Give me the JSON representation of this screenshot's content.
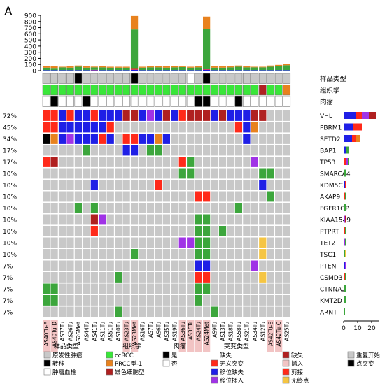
{
  "panel_label": "A",
  "colors": {
    "grey": "#c8c8c8",
    "white": "#ffffff",
    "black": "#000000",
    "green": "#3ca63c",
    "bright_green": "#39e639",
    "orange": "#e8821e",
    "yellow": "#f5c542",
    "blue": "#1f1fe6",
    "red": "#ff2a1a",
    "purple": "#a033e6",
    "maroon": "#b02020",
    "pink_bg": "#f2c4c4"
  },
  "chart_data": {
    "type": "table",
    "samples": [
      "AS40Tu-E",
      "AS40Tu-D",
      "AS37Tu",
      "AS26Tu",
      "AS26Met",
      "AS44Tu",
      "AS41Tu",
      "AS11Tu",
      "AS51Tu",
      "AS10Tu",
      "AS23Tu",
      "AS23Met",
      "AS16Tu",
      "AS7Tu",
      "AS6Tu",
      "AS35Tu",
      "AS19Tu",
      "AS36Tu",
      "AS36Tr",
      "AS24Tu",
      "AS24Met",
      "AS9Tu",
      "AS13Tu",
      "AS18Tu",
      "AS58Tu",
      "AS21Tu",
      "AS34Tu",
      "AS12Tu",
      "AS42Tu-E",
      "AS42Tu-C",
      "AS25Tu"
    ],
    "sample_pink": [
      true,
      true,
      false,
      false,
      false,
      false,
      false,
      false,
      false,
      false,
      true,
      true,
      false,
      false,
      false,
      false,
      false,
      true,
      true,
      true,
      true,
      false,
      false,
      false,
      false,
      false,
      false,
      false,
      true,
      true,
      false
    ],
    "top_axis": {
      "ticks": [
        0,
        100,
        200,
        300,
        400,
        500,
        600,
        700,
        800,
        900
      ],
      "max": 900
    },
    "top_bar_legend": "重复开始 / 点突变",
    "top_bars": [
      {
        "green": 40,
        "orange": 25,
        "blue": 8,
        "red": 0
      },
      {
        "green": 35,
        "orange": 25,
        "blue": 8,
        "red": 0
      },
      {
        "green": 45,
        "orange": 10,
        "blue": 8,
        "red": 0
      },
      {
        "green": 40,
        "orange": 20,
        "blue": 8,
        "red": 0
      },
      {
        "green": 55,
        "orange": 20,
        "blue": 8,
        "red": 0
      },
      {
        "green": 40,
        "orange": 20,
        "blue": 8,
        "red": 0
      },
      {
        "green": 40,
        "orange": 12,
        "blue": 8,
        "red": 5
      },
      {
        "green": 45,
        "orange": 18,
        "blue": 8,
        "red": 0
      },
      {
        "green": 40,
        "orange": 15,
        "blue": 8,
        "red": 0
      },
      {
        "green": 40,
        "orange": 15,
        "blue": 8,
        "red": 0
      },
      {
        "green": 40,
        "orange": 15,
        "blue": 8,
        "red": 0
      },
      {
        "green": 630,
        "orange": 220,
        "blue": 15,
        "red": 25
      },
      {
        "green": 40,
        "orange": 15,
        "blue": 8,
        "red": 0
      },
      {
        "green": 45,
        "orange": 15,
        "blue": 8,
        "red": 0
      },
      {
        "green": 45,
        "orange": 25,
        "blue": 8,
        "red": 0
      },
      {
        "green": 40,
        "orange": 20,
        "blue": 8,
        "red": 0
      },
      {
        "green": 45,
        "orange": 20,
        "blue": 8,
        "red": 0
      },
      {
        "green": 50,
        "orange": 15,
        "blue": 8,
        "red": 0
      },
      {
        "green": 40,
        "orange": 15,
        "blue": 8,
        "red": 0
      },
      {
        "green": 45,
        "orange": 15,
        "blue": 8,
        "red": 0
      },
      {
        "green": 650,
        "orange": 200,
        "blue": 15,
        "red": 15
      },
      {
        "green": 40,
        "orange": 20,
        "blue": 8,
        "red": 0
      },
      {
        "green": 40,
        "orange": 20,
        "blue": 8,
        "red": 0
      },
      {
        "green": 45,
        "orange": 15,
        "blue": 8,
        "red": 0
      },
      {
        "green": 55,
        "orange": 20,
        "blue": 8,
        "red": 0
      },
      {
        "green": 45,
        "orange": 15,
        "blue": 8,
        "red": 0
      },
      {
        "green": 45,
        "orange": 10,
        "blue": 8,
        "red": 0
      },
      {
        "green": 45,
        "orange": 10,
        "blue": 8,
        "red": 0
      },
      {
        "green": 55,
        "orange": 20,
        "blue": 8,
        "red": 0
      },
      {
        "green": 70,
        "orange": 15,
        "blue": 8,
        "red": 0
      },
      {
        "green": 80,
        "orange": 15,
        "blue": 8,
        "red": 0
      }
    ],
    "annotation_rows": [
      {
        "label": "样品类型",
        "values": [
          "G",
          "G",
          "G",
          "G",
          "K",
          "G",
          "G",
          "G",
          "G",
          "G",
          "G",
          "K",
          "G",
          "G",
          "G",
          "G",
          "G",
          "G",
          "W",
          "G",
          "K",
          "G",
          "G",
          "G",
          "G",
          "G",
          "G",
          "G",
          "G",
          "G",
          "G"
        ]
      },
      {
        "label": "组织学",
        "values": [
          "B",
          "B",
          "B",
          "B",
          "B",
          "B",
          "B",
          "B",
          "B",
          "B",
          "B",
          "B",
          "B",
          "B",
          "B",
          "B",
          "B",
          "B",
          "B",
          "B",
          "B",
          "B",
          "B",
          "B",
          "B",
          "B",
          "B",
          "M",
          "B",
          "B",
          "O"
        ]
      },
      {
        "label": "肉瘤",
        "values": [
          "W",
          "K",
          "W",
          "W",
          "W",
          "K",
          "W",
          "W",
          "W",
          "W",
          "W",
          "W",
          "W",
          "W",
          "W",
          "W",
          "W",
          "W",
          "W",
          "K",
          "K",
          "W",
          "W",
          "W",
          "K",
          "W",
          "W",
          "W",
          "W",
          "W",
          "W"
        ]
      }
    ],
    "genes": [
      {
        "name": "VHL",
        "pct": "72%",
        "cells": [
          "R",
          "R",
          "B",
          "R",
          "B",
          "B",
          "R",
          "B",
          "B",
          "B",
          "M",
          "M",
          "B",
          "P",
          "B",
          "M",
          "B",
          "R",
          "M",
          "M",
          "M",
          "B",
          "M",
          "B",
          "B",
          "B",
          "M",
          "M",
          "G",
          "G",
          "G"
        ],
        "bar": {
          "blue": 9,
          "red": 4,
          "purple": 5,
          "maroon": 5
        }
      },
      {
        "name": "PBRM1",
        "pct": "45%",
        "cells": [
          "R",
          "R",
          "B",
          "B",
          "B",
          "B",
          "B",
          "B",
          "R",
          "G",
          "G",
          "G",
          "G",
          "G",
          "G",
          "G",
          "G",
          "G",
          "G",
          "G",
          "G",
          "G",
          "G",
          "G",
          "R",
          "B",
          "O",
          "G",
          "G",
          "G",
          "G"
        ],
        "bar": {
          "blue": 7,
          "red": 6
        }
      },
      {
        "name": "SETD2",
        "pct": "34%",
        "cells": [
          "K",
          "O",
          "B",
          "P",
          "B",
          "B",
          "B",
          "R",
          "B",
          "G",
          "R",
          "R",
          "B",
          "B",
          "O",
          "B",
          "G",
          "G",
          "G",
          "G",
          "G",
          "G",
          "G",
          "G",
          "G",
          "B",
          "G",
          "G",
          "G",
          "G",
          "G"
        ],
        "bar": {
          "blue": 6,
          "orange": 3,
          "red": 3
        }
      },
      {
        "name": "BAP1",
        "pct": "17%",
        "cells": [
          "G",
          "G",
          "G",
          "G",
          "G",
          "V",
          "G",
          "G",
          "G",
          "G",
          "B",
          "B",
          "G",
          "V",
          "V",
          "G",
          "G",
          "G",
          "G",
          "G",
          "G",
          "G",
          "G",
          "G",
          "G",
          "G",
          "G",
          "G",
          "G",
          "G",
          "G"
        ],
        "bar": {
          "blue": 2,
          "green": 2
        }
      },
      {
        "name": "TP53",
        "pct": "17%",
        "cells": [
          "R",
          "M",
          "G",
          "G",
          "G",
          "G",
          "G",
          "G",
          "G",
          "G",
          "G",
          "G",
          "G",
          "G",
          "G",
          "G",
          "G",
          "R",
          "V",
          "G",
          "G",
          "G",
          "G",
          "G",
          "G",
          "G",
          "P",
          "G",
          "G",
          "G",
          "G"
        ],
        "bar": {
          "red": 2,
          "purple": 1,
          "green": 1
        }
      },
      {
        "name": "SMARCA4",
        "pct": "10%",
        "cells": [
          "G",
          "G",
          "G",
          "G",
          "G",
          "G",
          "G",
          "G",
          "G",
          "G",
          "G",
          "G",
          "G",
          "G",
          "G",
          "G",
          "G",
          "V",
          "V",
          "G",
          "G",
          "G",
          "G",
          "G",
          "G",
          "G",
          "G",
          "V",
          "V",
          "G",
          "G"
        ],
        "bar": {
          "green": 2
        }
      },
      {
        "name": "KDM5C",
        "pct": "10%",
        "cells": [
          "G",
          "G",
          "G",
          "G",
          "G",
          "G",
          "B",
          "G",
          "G",
          "G",
          "G",
          "G",
          "G",
          "G",
          "R",
          "G",
          "G",
          "G",
          "G",
          "G",
          "G",
          "G",
          "G",
          "G",
          "G",
          "G",
          "G",
          "B",
          "G",
          "G",
          "G"
        ],
        "bar": {
          "blue": 1,
          "red": 1
        }
      },
      {
        "name": "AKAP9",
        "pct": "10%",
        "cells": [
          "G",
          "G",
          "G",
          "G",
          "G",
          "G",
          "G",
          "G",
          "G",
          "G",
          "G",
          "G",
          "G",
          "G",
          "G",
          "G",
          "G",
          "G",
          "G",
          "R",
          "R",
          "G",
          "G",
          "G",
          "G",
          "G",
          "G",
          "G",
          "V",
          "G",
          "G"
        ],
        "bar": {
          "red": 1,
          "green": 1
        }
      },
      {
        "name": "FGFR1OP",
        "pct": "10%",
        "cells": [
          "G",
          "G",
          "G",
          "G",
          "V",
          "G",
          "V",
          "G",
          "G",
          "G",
          "G",
          "G",
          "G",
          "G",
          "G",
          "G",
          "G",
          "G",
          "G",
          "G",
          "G",
          "G",
          "G",
          "G",
          "V",
          "G",
          "G",
          "G",
          "G",
          "G",
          "G"
        ],
        "bar": {
          "green": 2
        }
      },
      {
        "name": "KIAA1549",
        "pct": "10%",
        "cells": [
          "G",
          "G",
          "G",
          "G",
          "G",
          "G",
          "M",
          "P",
          "G",
          "G",
          "G",
          "G",
          "G",
          "G",
          "G",
          "G",
          "G",
          "G",
          "G",
          "V",
          "V",
          "G",
          "G",
          "G",
          "G",
          "G",
          "G",
          "G",
          "G",
          "G",
          "G"
        ],
        "bar": {
          "maroon": 1,
          "purple": 1
        }
      },
      {
        "name": "PTPRT",
        "pct": "10%",
        "cells": [
          "G",
          "G",
          "G",
          "G",
          "G",
          "G",
          "R",
          "G",
          "G",
          "G",
          "G",
          "G",
          "G",
          "G",
          "G",
          "G",
          "G",
          "G",
          "G",
          "V",
          "V",
          "G",
          "V",
          "G",
          "G",
          "G",
          "G",
          "G",
          "G",
          "G",
          "G"
        ],
        "bar": {
          "red": 1,
          "green": 1
        }
      },
      {
        "name": "TET2",
        "pct": "10%",
        "cells": [
          "G",
          "G",
          "G",
          "G",
          "G",
          "G",
          "G",
          "G",
          "G",
          "G",
          "G",
          "G",
          "G",
          "G",
          "G",
          "G",
          "G",
          "P",
          "P",
          "V",
          "V",
          "G",
          "G",
          "G",
          "G",
          "G",
          "G",
          "Y",
          "G",
          "G",
          "G"
        ],
        "bar": {
          "purple": 1,
          "green": 1
        }
      },
      {
        "name": "TSC1",
        "pct": "10%",
        "cells": [
          "G",
          "G",
          "G",
          "G",
          "G",
          "G",
          "G",
          "G",
          "G",
          "G",
          "G",
          "V",
          "G",
          "G",
          "G",
          "G",
          "G",
          "G",
          "G",
          "V",
          "V",
          "G",
          "G",
          "G",
          "G",
          "G",
          "G",
          "Y",
          "G",
          "G",
          "G"
        ],
        "bar": {
          "green": 1,
          "yellow": 1
        }
      },
      {
        "name": "PTEN",
        "pct": "7%",
        "cells": [
          "G",
          "G",
          "G",
          "G",
          "G",
          "G",
          "G",
          "G",
          "G",
          "G",
          "G",
          "G",
          "G",
          "G",
          "G",
          "G",
          "G",
          "G",
          "G",
          "B",
          "B",
          "G",
          "G",
          "G",
          "G",
          "G",
          "P",
          "G",
          "G",
          "G",
          "G"
        ],
        "bar": {
          "blue": 1,
          "purple": 1
        }
      },
      {
        "name": "CSMD3",
        "pct": "7%",
        "cells": [
          "G",
          "G",
          "G",
          "G",
          "G",
          "G",
          "G",
          "G",
          "G",
          "V",
          "G",
          "G",
          "G",
          "G",
          "G",
          "G",
          "G",
          "G",
          "G",
          "R",
          "R",
          "G",
          "G",
          "G",
          "G",
          "G",
          "G",
          "Y",
          "G",
          "G",
          "G"
        ],
        "bar": {
          "red": 1,
          "green": 1
        }
      },
      {
        "name": "CTNNA2",
        "pct": "7%",
        "cells": [
          "V",
          "V",
          "G",
          "G",
          "G",
          "G",
          "G",
          "G",
          "G",
          "G",
          "G",
          "G",
          "G",
          "G",
          "G",
          "G",
          "G",
          "G",
          "G",
          "V",
          "V",
          "G",
          "G",
          "G",
          "G",
          "G",
          "G",
          "G",
          "G",
          "G",
          "G"
        ],
        "bar": {
          "green": 2
        }
      },
      {
        "name": "KMT2D",
        "pct": "7%",
        "cells": [
          "V",
          "V",
          "G",
          "G",
          "G",
          "G",
          "G",
          "G",
          "G",
          "G",
          "G",
          "G",
          "G",
          "G",
          "G",
          "G",
          "G",
          "G",
          "G",
          "V",
          "G",
          "G",
          "G",
          "G",
          "G",
          "G",
          "G",
          "G",
          "G",
          "G",
          "G"
        ],
        "bar": {
          "green": 2
        }
      },
      {
        "name": "ARNT",
        "pct": "7%",
        "cells": [
          "G",
          "G",
          "G",
          "G",
          "G",
          "G",
          "G",
          "G",
          "G",
          "V",
          "G",
          "G",
          "G",
          "G",
          "G",
          "G",
          "G",
          "G",
          "G",
          "G",
          "G",
          "V",
          "G",
          "G",
          "G",
          "G",
          "G",
          "G",
          "G",
          "G",
          "G"
        ],
        "bar": {
          "green": 1
        }
      }
    ],
    "right_axis": {
      "ticks": [
        0,
        10,
        20
      ],
      "max": 25
    }
  },
  "legend": {
    "sample_type": {
      "title": "样品类型",
      "items": [
        {
          "label": "原发性肿瘤",
          "color": "#c8c8c8"
        },
        {
          "label": "转移",
          "color": "#000000"
        },
        {
          "label": "肿瘤血栓",
          "color": "#ffffff"
        }
      ]
    },
    "histology": {
      "title": "组织学",
      "items": [
        {
          "label": "ccRCC",
          "color": "#39e639"
        },
        {
          "label": "PRCC型-1",
          "color": "#e8821e"
        },
        {
          "label": "嫌色细胞型",
          "color": "#b02020"
        }
      ]
    },
    "sarcoma": {
      "title": "肉瘤",
      "items": [
        {
          "label": "是",
          "color": "#000000"
        },
        {
          "label": "否",
          "color": "#ffffff"
        }
      ]
    },
    "mutation": {
      "title": "突变类型",
      "items": [
        {
          "label": "缺失",
          "color": ""
        },
        {
          "label": "无义突变",
          "color": "#ff2a1a"
        },
        {
          "label": "移位缺失",
          "color": "#1f1fe6"
        },
        {
          "label": "移位插入",
          "color": "#a033e6"
        }
      ]
    },
    "mutation2": {
      "items": [
        {
          "label": "缺失",
          "color": "#b02020"
        },
        {
          "label": "插入",
          "color": "#f2c4c4"
        },
        {
          "label": "剪接",
          "color": "#ff2a1a"
        },
        {
          "label": "无终点",
          "color": "#f5c542"
        }
      ]
    },
    "extra": {
      "items": [
        {
          "label": "重复开始",
          "color": "#c8c8c8"
        },
        {
          "label": "点突变",
          "color": "#000000"
        }
      ]
    }
  }
}
